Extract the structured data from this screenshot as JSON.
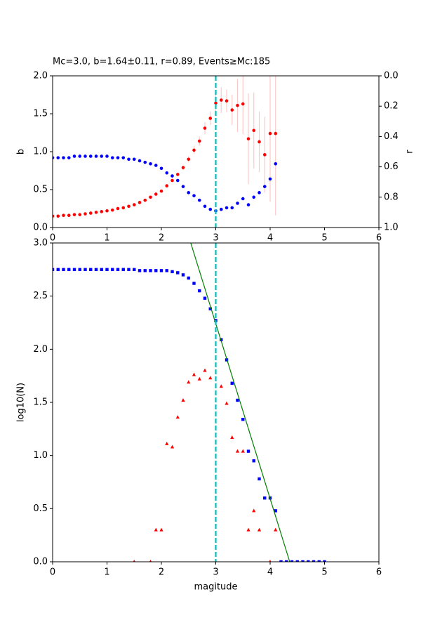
{
  "chart_data": [
    {
      "type": "scatter",
      "title": "Mc=3.0, b=1.64±0.11, r=0.89, Events≥Mc:185",
      "ylabel": "b",
      "y2label": "r",
      "xlim": [
        0,
        6
      ],
      "xticks": [
        0,
        1,
        2,
        3,
        4,
        5,
        6
      ],
      "ylim": [
        0,
        2
      ],
      "yticks": [
        {
          "value": 0,
          "label": "0.0"
        },
        {
          "value": 0.5,
          "label": "0.5"
        },
        {
          "value": 1,
          "label": "1.0"
        },
        {
          "value": 1.5,
          "label": "1.5"
        },
        {
          "value": 2,
          "label": "2.0"
        }
      ],
      "y2lim": [
        1,
        0
      ],
      "y2ticks": [
        {
          "value": 0,
          "label": "0.0"
        },
        {
          "value": 0.2,
          "label": "0.2"
        },
        {
          "value": 0.4,
          "label": "0.4"
        },
        {
          "value": 0.6,
          "label": "0.6"
        },
        {
          "value": 0.8,
          "label": "0.8"
        },
        {
          "value": 1,
          "label": "1.0"
        }
      ],
      "mc_line": 3.0,
      "mc_color": "#00bfbf",
      "x": [
        0,
        0.1,
        0.2,
        0.3,
        0.4,
        0.5,
        0.6,
        0.7,
        0.8,
        0.9,
        1.0,
        1.1,
        1.2,
        1.3,
        1.4,
        1.5,
        1.6,
        1.7,
        1.8,
        1.9,
        2.0,
        2.1,
        2.2,
        2.3,
        2.4,
        2.5,
        2.6,
        2.7,
        2.8,
        2.9,
        3.0,
        3.1,
        3.2,
        3.3,
        3.4,
        3.5,
        3.6,
        3.7,
        3.8,
        3.9,
        4.0,
        4.1
      ],
      "series": [
        {
          "color": "#ff0000",
          "marker": "o",
          "error_color": "#ffc8c8",
          "values": [
            0.15,
            0.15,
            0.16,
            0.16,
            0.17,
            0.17,
            0.18,
            0.19,
            0.2,
            0.21,
            0.22,
            0.23,
            0.25,
            0.26,
            0.28,
            0.3,
            0.33,
            0.36,
            0.4,
            0.44,
            0.48,
            0.55,
            0.62,
            0.7,
            0.79,
            0.9,
            1.02,
            1.14,
            1.31,
            1.44,
            1.64,
            1.68,
            1.67,
            1.55,
            1.61,
            1.63,
            1.17,
            1.28,
            1.13,
            0.96,
            1.24,
            1.24
          ],
          "errors": [
            0.01,
            0.01,
            0.01,
            0.01,
            0.01,
            0.01,
            0.01,
            0.01,
            0.01,
            0.01,
            0.01,
            0.01,
            0.01,
            0.01,
            0.01,
            0.01,
            0.01,
            0.01,
            0.01,
            0.01,
            0.01,
            0.01,
            0.02,
            0.02,
            0.03,
            0.04,
            0.05,
            0.06,
            0.08,
            0.09,
            0.11,
            0.17,
            0.15,
            0.2,
            0.35,
            0.4,
            0.6,
            0.5,
            0.4,
            0.5,
            0.9,
            1.08
          ]
        },
        {
          "color": "#0000ff",
          "marker": "o",
          "axis": "y2",
          "values": [
            0.54,
            0.54,
            0.54,
            0.54,
            0.53,
            0.53,
            0.53,
            0.53,
            0.53,
            0.53,
            0.53,
            0.54,
            0.54,
            0.54,
            0.55,
            0.55,
            0.56,
            0.57,
            0.58,
            0.59,
            0.61,
            0.64,
            0.66,
            0.69,
            0.73,
            0.77,
            0.79,
            0.82,
            0.86,
            0.88,
            0.89,
            0.88,
            0.87,
            0.87,
            0.84,
            0.81,
            0.85,
            0.8,
            0.77,
            0.73,
            0.68,
            0.58
          ]
        }
      ]
    },
    {
      "type": "scatter",
      "xlabel": "magitude",
      "ylabel": "log10(N)",
      "xlim": [
        0,
        6
      ],
      "xticks": [
        0,
        1,
        2,
        3,
        4,
        5,
        6
      ],
      "ylim": [
        0,
        3
      ],
      "yticks": [
        {
          "value": 0,
          "label": "0.0"
        },
        {
          "value": 0.5,
          "label": "0.5"
        },
        {
          "value": 1,
          "label": "1.0"
        },
        {
          "value": 1.5,
          "label": "1.5"
        },
        {
          "value": 2,
          "label": "2.0"
        },
        {
          "value": 2.5,
          "label": "2.5"
        },
        {
          "value": 3,
          "label": "3.0"
        }
      ],
      "mc_line": 3.0,
      "mc_color": "#00bfbf",
      "x": [
        0,
        0.1,
        0.2,
        0.3,
        0.4,
        0.5,
        0.6,
        0.7,
        0.8,
        0.9,
        1.0,
        1.1,
        1.2,
        1.3,
        1.4,
        1.5,
        1.6,
        1.7,
        1.8,
        1.9,
        2.0,
        2.1,
        2.2,
        2.3,
        2.4,
        2.5,
        2.6,
        2.7,
        2.8,
        2.9,
        3.0,
        3.1,
        3.2,
        3.3,
        3.4,
        3.5,
        3.6,
        3.7,
        3.8,
        3.9,
        4.0,
        4.1,
        4.2,
        4.3,
        4.4,
        4.5,
        4.6,
        4.7,
        4.8,
        4.9,
        5.0
      ],
      "series": [
        {
          "color": "#0000ff",
          "marker": "s",
          "values": [
            2.75,
            2.75,
            2.75,
            2.75,
            2.75,
            2.75,
            2.75,
            2.75,
            2.75,
            2.75,
            2.75,
            2.75,
            2.75,
            2.75,
            2.75,
            2.75,
            2.74,
            2.74,
            2.74,
            2.74,
            2.74,
            2.74,
            2.73,
            2.72,
            2.7,
            2.67,
            2.62,
            2.55,
            2.48,
            2.38,
            2.27,
            2.09,
            1.9,
            1.68,
            1.52,
            1.34,
            1.04,
            0.95,
            0.78,
            0.6,
            0.6,
            0.48,
            0,
            0,
            0,
            0,
            0,
            0,
            0,
            0,
            0
          ]
        },
        {
          "color": "#ff0000",
          "marker": "^",
          "x": [
            1.5,
            1.8,
            1.9,
            2.0,
            2.1,
            2.2,
            2.3,
            2.4,
            2.5,
            2.6,
            2.7,
            2.8,
            2.9,
            3.1,
            3.2,
            3.3,
            3.4,
            3.5,
            3.6,
            3.7,
            3.8,
            4.0,
            4.1
          ],
          "values": [
            0,
            0,
            0.3,
            0.3,
            1.11,
            1.08,
            1.36,
            1.52,
            1.69,
            1.76,
            1.72,
            1.8,
            1.73,
            1.65,
            1.49,
            1.17,
            1.04,
            1.04,
            0.3,
            0.48,
            0.3,
            0,
            0.3
          ]
        },
        {
          "color": "#008000",
          "marker": "line",
          "x": [
            2.54,
            4.36
          ],
          "values": [
            3.0,
            0.0
          ]
        }
      ]
    }
  ]
}
